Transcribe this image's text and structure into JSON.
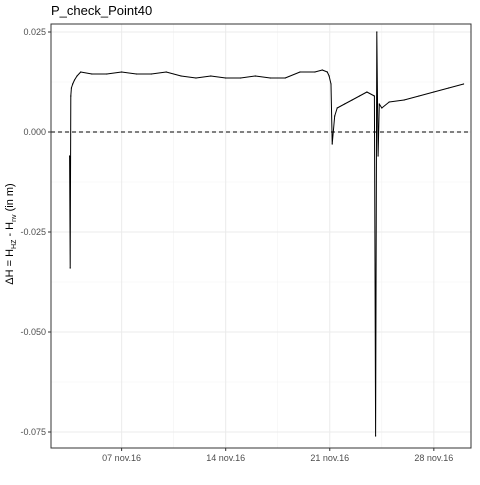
{
  "chart_data": {
    "type": "line",
    "title": "P_check_Point40",
    "xlabel": "",
    "ylabel_parts": [
      "ΔH = H",
      "HZ",
      " - H",
      "nv",
      " (in m)"
    ],
    "ylim": [
      -0.079,
      0.027
    ],
    "xlim": [
      "2016-11-02T06:00",
      "2016-11-30T12:00"
    ],
    "yticks": [
      0.025,
      0.0,
      -0.025,
      -0.05,
      -0.075
    ],
    "ytick_labels": [
      "0.025",
      "0.000",
      "-0.025",
      "-0.050",
      "-0.075"
    ],
    "xticks": [
      "2016-11-07",
      "2016-11-14",
      "2016-11-21",
      "2016-11-28"
    ],
    "xtick_labels": [
      "07 nov.16",
      "14 nov.16",
      "21 nov.16",
      "28 nov.16"
    ],
    "reference_line": {
      "y": 0.0,
      "style": "dashed"
    },
    "grid": true,
    "series": [
      {
        "x": [
          "2016-11-03T12:00",
          "2016-11-03T13:00",
          "2016-11-03T14:00",
          "2016-11-03T15:00",
          "2016-11-03T17:00",
          "2016-11-03T20:00",
          "2016-11-04T00:00",
          "2016-11-04T06:00",
          "2016-11-05T00:00",
          "2016-11-06T00:00",
          "2016-11-07T00:00",
          "2016-11-08T00:00",
          "2016-11-09T00:00",
          "2016-11-10T00:00",
          "2016-11-11T00:00",
          "2016-11-12T00:00",
          "2016-11-13T00:00",
          "2016-11-14T00:00",
          "2016-11-15T00:00",
          "2016-11-16T00:00",
          "2016-11-17T00:00",
          "2016-11-18T00:00",
          "2016-11-19T00:00",
          "2016-11-20T00:00",
          "2016-11-20T12:00",
          "2016-11-20T20:00",
          "2016-11-20T23:00",
          "2016-11-21T02:00",
          "2016-11-21T04:00",
          "2016-11-21T08:00",
          "2016-11-21T12:00",
          "2016-11-22T00:00",
          "2016-11-22T12:00",
          "2016-11-23T00:00",
          "2016-11-23T12:00",
          "2016-11-24T00:00",
          "2016-11-24T02:00",
          "2016-11-24T04:00",
          "2016-11-24T06:00",
          "2016-11-24T08:00",
          "2016-11-24T12:00",
          "2016-11-25T00:00",
          "2016-11-26T00:00",
          "2016-11-27T00:00",
          "2016-11-28T00:00",
          "2016-11-29T00:00",
          "2016-11-30T00:00"
        ],
        "y": [
          -0.006,
          -0.034,
          0.009,
          0.011,
          0.012,
          0.013,
          0.014,
          0.015,
          0.0145,
          0.0145,
          0.015,
          0.0145,
          0.0145,
          0.015,
          0.014,
          0.0135,
          0.014,
          0.0135,
          0.0135,
          0.014,
          0.0135,
          0.0135,
          0.015,
          0.015,
          0.0155,
          0.015,
          0.014,
          0.012,
          -0.003,
          0.004,
          0.006,
          0.007,
          0.008,
          0.009,
          0.01,
          0.009,
          -0.076,
          0.025,
          -0.006,
          0.007,
          0.006,
          0.0075,
          0.008,
          0.009,
          0.01,
          0.011,
          0.012
        ]
      }
    ]
  }
}
